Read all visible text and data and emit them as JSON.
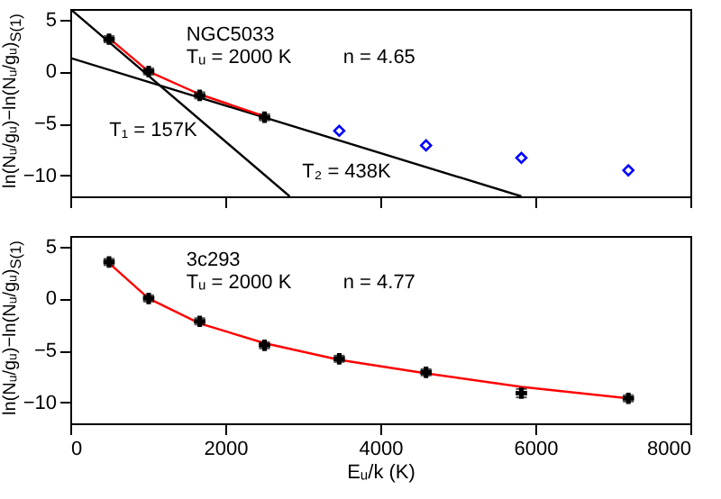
{
  "chart_data": [
    {
      "type": "scatter",
      "xlim": [
        0,
        8000
      ],
      "xticks": [
        0,
        2000,
        4000,
        6000,
        8000
      ],
      "ylim": [
        -12,
        6
      ],
      "yticks": [
        -10,
        -5,
        0,
        5
      ],
      "ylabel": "ln(Nᵤ/gᵤ)−ln(Nᵤ/gᵤ)$_{S(1)}$",
      "tick_labels": "y",
      "annotations": [
        "NGC5033",
        "Tᵤ = 2000 K",
        "n = 4.65",
        "T₁ = 157K",
        "T₂ = 438K"
      ],
      "series": [
        {
          "type": "line",
          "color": "#000000",
          "x": [
            0,
            2830
          ],
          "values": [
            6.0,
            -12.0
          ]
        },
        {
          "type": "line",
          "color": "#000000",
          "x": [
            0,
            5820
          ],
          "values": [
            1.3,
            -12.0
          ]
        },
        {
          "type": "line",
          "color": "#ff0000",
          "x": [
            500,
            1011,
            1670,
            2506
          ],
          "values": [
            3.2,
            0,
            -2.2,
            -4.3
          ]
        },
        {
          "type": "scatter",
          "marker": "cross",
          "color": "#000000",
          "x": [
            500,
            1011,
            1670,
            2506
          ],
          "values": [
            3.1,
            0,
            -2.3,
            -4.4
          ],
          "errors": [
            0.3,
            0.3,
            0.3,
            0.3
          ]
        },
        {
          "type": "scatter",
          "marker": "diamond",
          "color": "#0000ff",
          "x": [
            3470,
            4590,
            5820,
            7200
          ],
          "values": [
            -5.7,
            -7.1,
            -8.3,
            -9.5
          ]
        }
      ]
    },
    {
      "type": "scatter",
      "xlim": [
        0,
        8000
      ],
      "xticks": [
        0,
        2000,
        4000,
        6000,
        8000
      ],
      "ylim": [
        -12,
        6
      ],
      "yticks": [
        -10,
        -5,
        0,
        5
      ],
      "xlabel": "Eᵤ/k (K)",
      "ylabel": "ln(Nᵤ/gᵤ)−ln(Nᵤ/gᵤ)$_{S(1)}$",
      "annotations": [
        "3c293",
        "Tᵤ = 2000 K",
        "n = 4.77"
      ],
      "series": [
        {
          "type": "line",
          "color": "#ff0000",
          "x": [
            500,
            1011,
            1670,
            2506,
            3470,
            4590,
            5820,
            7200
          ],
          "values": [
            3.4,
            0,
            -2.4,
            -4.3,
            -5.9,
            -7.2,
            -8.5,
            -9.6
          ]
        },
        {
          "type": "scatter",
          "marker": "cross",
          "color": "#000000",
          "x": [
            500,
            1011,
            1670,
            2506,
            3470,
            4590,
            5820,
            7200
          ],
          "values": [
            3.5,
            0,
            -2.2,
            -4.5,
            -5.8,
            -7.1,
            -9.1,
            -9.6
          ],
          "errors": [
            0.3,
            0.3,
            0.3,
            0.3,
            0.3,
            0.3,
            0.4,
            0.3
          ]
        }
      ]
    }
  ]
}
